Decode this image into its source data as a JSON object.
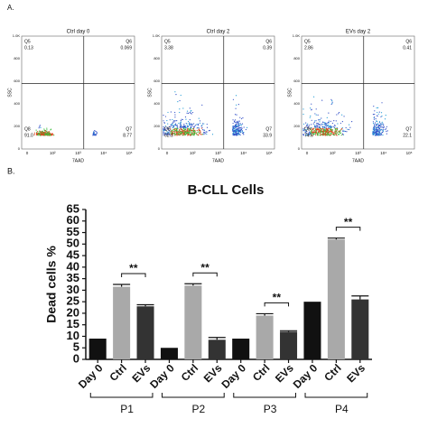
{
  "panel_a": {
    "label": "A.",
    "y_axis_label": "SSC",
    "x_axis_label": "7AAD",
    "yticks": [
      "0",
      "200",
      "400",
      "600",
      "800",
      "1.0K"
    ],
    "xticks": [
      "0",
      "10²",
      "10³",
      "10⁴",
      "10⁵"
    ],
    "plots": [
      {
        "title": "Ctrl day 0",
        "quadrants": [
          {
            "name": "Q5",
            "value": "0.13"
          },
          {
            "name": "Q6",
            "value": "0.069"
          },
          {
            "name": "Q8",
            "value": "91.0"
          },
          {
            "name": "Q7",
            "value": "8.77"
          }
        ]
      },
      {
        "title": "Ctrl day 2",
        "quadrants": [
          {
            "name": "Q5",
            "value": "3.38"
          },
          {
            "name": "Q6",
            "value": "0.39"
          },
          {
            "name": "Q8",
            "value": "62.3"
          },
          {
            "name": "Q7",
            "value": "33.9"
          }
        ]
      },
      {
        "title": "EVs day 2",
        "quadrants": [
          {
            "name": "Q5",
            "value": "2.86"
          },
          {
            "name": "Q6",
            "value": "0.41"
          },
          {
            "name": "Q8",
            "value": "74.6"
          },
          {
            "name": "Q7",
            "value": "22.1"
          }
        ]
      }
    ]
  },
  "chart_data": {
    "type": "bar",
    "label": "B.",
    "title": "B-CLL Cells",
    "y_label": "Dead cells %",
    "categories": [
      "Day 0",
      "Ctrl",
      "EVs",
      "Day 0",
      "Ctrl",
      "EVs",
      "Day 0",
      "Ctrl",
      "EVs",
      "Day 0",
      "Ctrl",
      "EVs"
    ],
    "values": [
      9,
      31.5,
      23,
      5,
      32,
      8.5,
      9,
      19,
      12,
      25,
      52,
      26
    ],
    "errors": [
      0,
      1,
      0.7,
      0,
      0.8,
      1,
      0,
      0.8,
      0.4,
      0,
      0.6,
      1.5
    ],
    "colors": [
      "#111111",
      "#a9a9a9",
      "#333333",
      "#111111",
      "#a9a9a9",
      "#333333",
      "#111111",
      "#a9a9a9",
      "#333333",
      "#111111",
      "#a9a9a9",
      "#333333"
    ],
    "groups": [
      "P1",
      "P2",
      "P3",
      "P4"
    ],
    "annotations": [
      "**",
      "**",
      "**",
      "**"
    ],
    "ylim": [
      0,
      65
    ],
    "yticks": [
      0,
      5,
      10,
      15,
      20,
      25,
      30,
      35,
      40,
      45,
      50,
      55,
      60,
      65
    ]
  }
}
